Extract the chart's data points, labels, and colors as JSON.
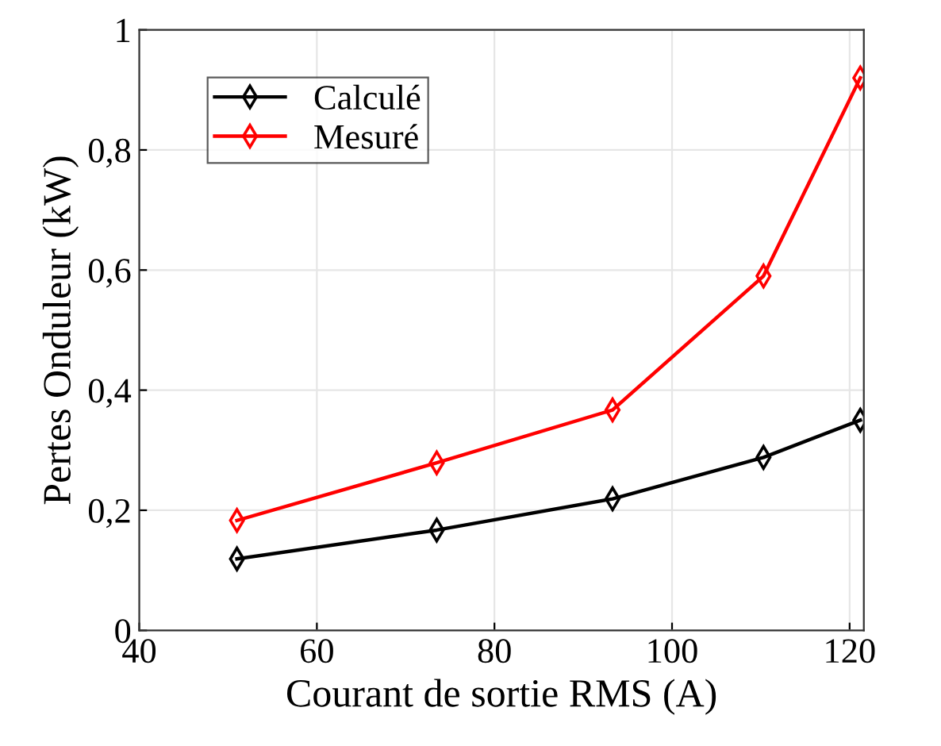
{
  "chart_data": {
    "type": "line",
    "xlabel": "Courant de sortie RMS (A)",
    "ylabel": "Pertes Onduleur (kW)",
    "x": [
      51,
      73.5,
      93.3,
      110.3,
      121.2
    ],
    "series": [
      {
        "name": "Calculé",
        "color": "#000000",
        "values": [
          0.119,
          0.167,
          0.219,
          0.288,
          0.35
        ]
      },
      {
        "name": "Mesuré",
        "color": "#ff0000",
        "values": [
          0.183,
          0.279,
          0.367,
          0.59,
          0.92
        ]
      }
    ],
    "xlim": [
      40,
      121.6
    ],
    "xticks": [
      40,
      60,
      80,
      100,
      120
    ],
    "ylim": [
      0,
      1
    ],
    "yticks": [
      {
        "value": 0,
        "label": "0"
      },
      {
        "value": 0.2,
        "label": "0,2"
      },
      {
        "value": 0.4,
        "label": "0,4"
      },
      {
        "value": 0.6,
        "label": "0,6"
      },
      {
        "value": 0.8,
        "label": "0,8"
      },
      {
        "value": 1,
        "label": "1"
      }
    ],
    "grid": true,
    "legend": "top left",
    "marker": "diamond",
    "line_style": "solid"
  }
}
